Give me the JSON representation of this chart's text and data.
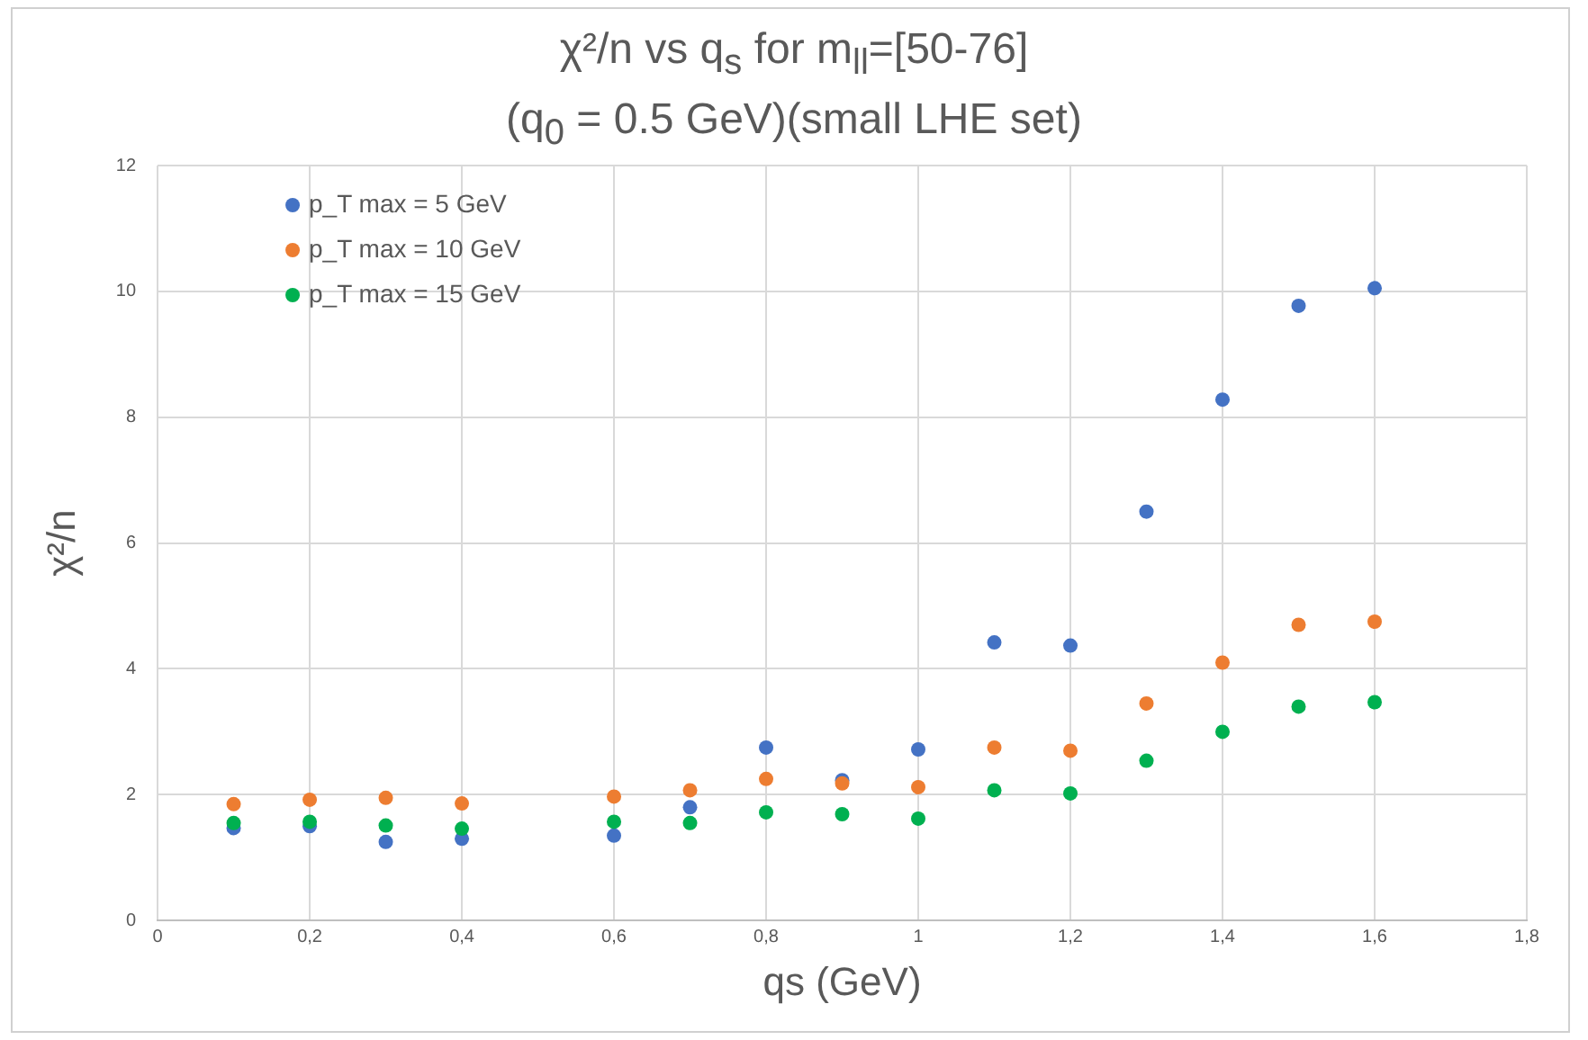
{
  "chart_data": {
    "type": "scatter",
    "title": "χ²/n vs q$_{s}$ for m$_{ll}$=[50-76]",
    "subtitle": "(q$_{0}$ = 0.5 GeV)(small LHE set)",
    "xlabel": "qs (GeV)",
    "ylabel": "χ²/n",
    "x": [
      0.1,
      0.2,
      0.3,
      0.4,
      0.6,
      0.7,
      0.8,
      0.9,
      1.0,
      1.1,
      1.2,
      1.3,
      1.4,
      1.5,
      1.6
    ],
    "series": [
      {
        "name": "p_T max = 5 GeV",
        "color": "#4472c4",
        "values": [
          1.47,
          1.5,
          1.25,
          1.3,
          1.35,
          1.8,
          2.75,
          2.23,
          2.72,
          4.42,
          4.37,
          6.5,
          8.28,
          9.77,
          10.05
        ]
      },
      {
        "name": "p_T max = 10 GeV",
        "color": "#ed7d31",
        "values": [
          1.85,
          1.92,
          1.95,
          1.86,
          1.97,
          2.07,
          2.25,
          2.18,
          2.12,
          2.75,
          2.7,
          3.45,
          4.1,
          4.7,
          4.75
        ]
      },
      {
        "name": "p_T max = 15 GeV",
        "color": "#00b050",
        "values": [
          1.55,
          1.57,
          1.51,
          1.46,
          1.57,
          1.55,
          1.72,
          1.69,
          1.62,
          2.07,
          2.02,
          2.54,
          3.0,
          3.4,
          3.47
        ]
      }
    ],
    "xlim": [
      0,
      1.8
    ],
    "xticks": [
      0,
      {
        "value": 0.2,
        "label": "0,2"
      },
      {
        "value": 0.4,
        "label": "0,4"
      },
      {
        "value": 0.6,
        "label": "0,6"
      },
      {
        "value": 0.8,
        "label": "0,8"
      },
      1,
      {
        "value": 1.2,
        "label": "1,2"
      },
      {
        "value": 1.4,
        "label": "1,4"
      },
      {
        "value": 1.6,
        "label": "1,6"
      },
      {
        "value": 1.8,
        "label": "1,8"
      }
    ],
    "ylim": [
      0,
      12
    ],
    "yticks": [
      0,
      2,
      4,
      6,
      8,
      10,
      12
    ],
    "grid": true,
    "legend": "top left",
    "marker": "circle"
  }
}
